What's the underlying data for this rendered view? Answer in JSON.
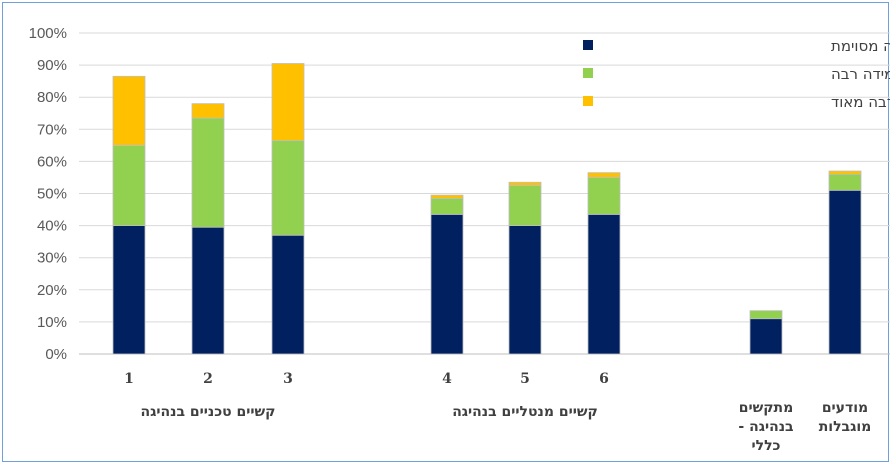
{
  "chart_data": {
    "type": "bar",
    "stacked": true,
    "ylim": [
      0,
      100
    ],
    "y_ticks": [
      "0%",
      "10%",
      "20%",
      "30%",
      "40%",
      "50%",
      "60%",
      "70%",
      "80%",
      "90%",
      "100%"
    ],
    "categories": [
      "1",
      "2",
      "3",
      "4",
      "5",
      "6",
      "מתקשים\nבנהיגה -\nכללי",
      "מודעים\nמוגבלות"
    ],
    "groups": [
      "קשיים טכניים בנהיגה",
      "קשיים מנטליים בנהיגה"
    ],
    "grid": true,
    "legend_position": "top-right",
    "series": [
      {
        "name": "מסכים במידה מסוימת",
        "color": "#002060",
        "values": [
          40,
          39.5,
          37,
          43.5,
          40,
          43.5,
          11,
          51
        ]
      },
      {
        "name": "מסכים במידה רבה",
        "color": "#92d050",
        "values": [
          25,
          34,
          29.5,
          5,
          12.5,
          11.5,
          2.5,
          5
        ]
      },
      {
        "name": "מסכים במידה רבה מאוד",
        "color": "#ffc000",
        "values": [
          21.5,
          4.5,
          24,
          1,
          1,
          1.5,
          0,
          1
        ]
      }
    ]
  }
}
